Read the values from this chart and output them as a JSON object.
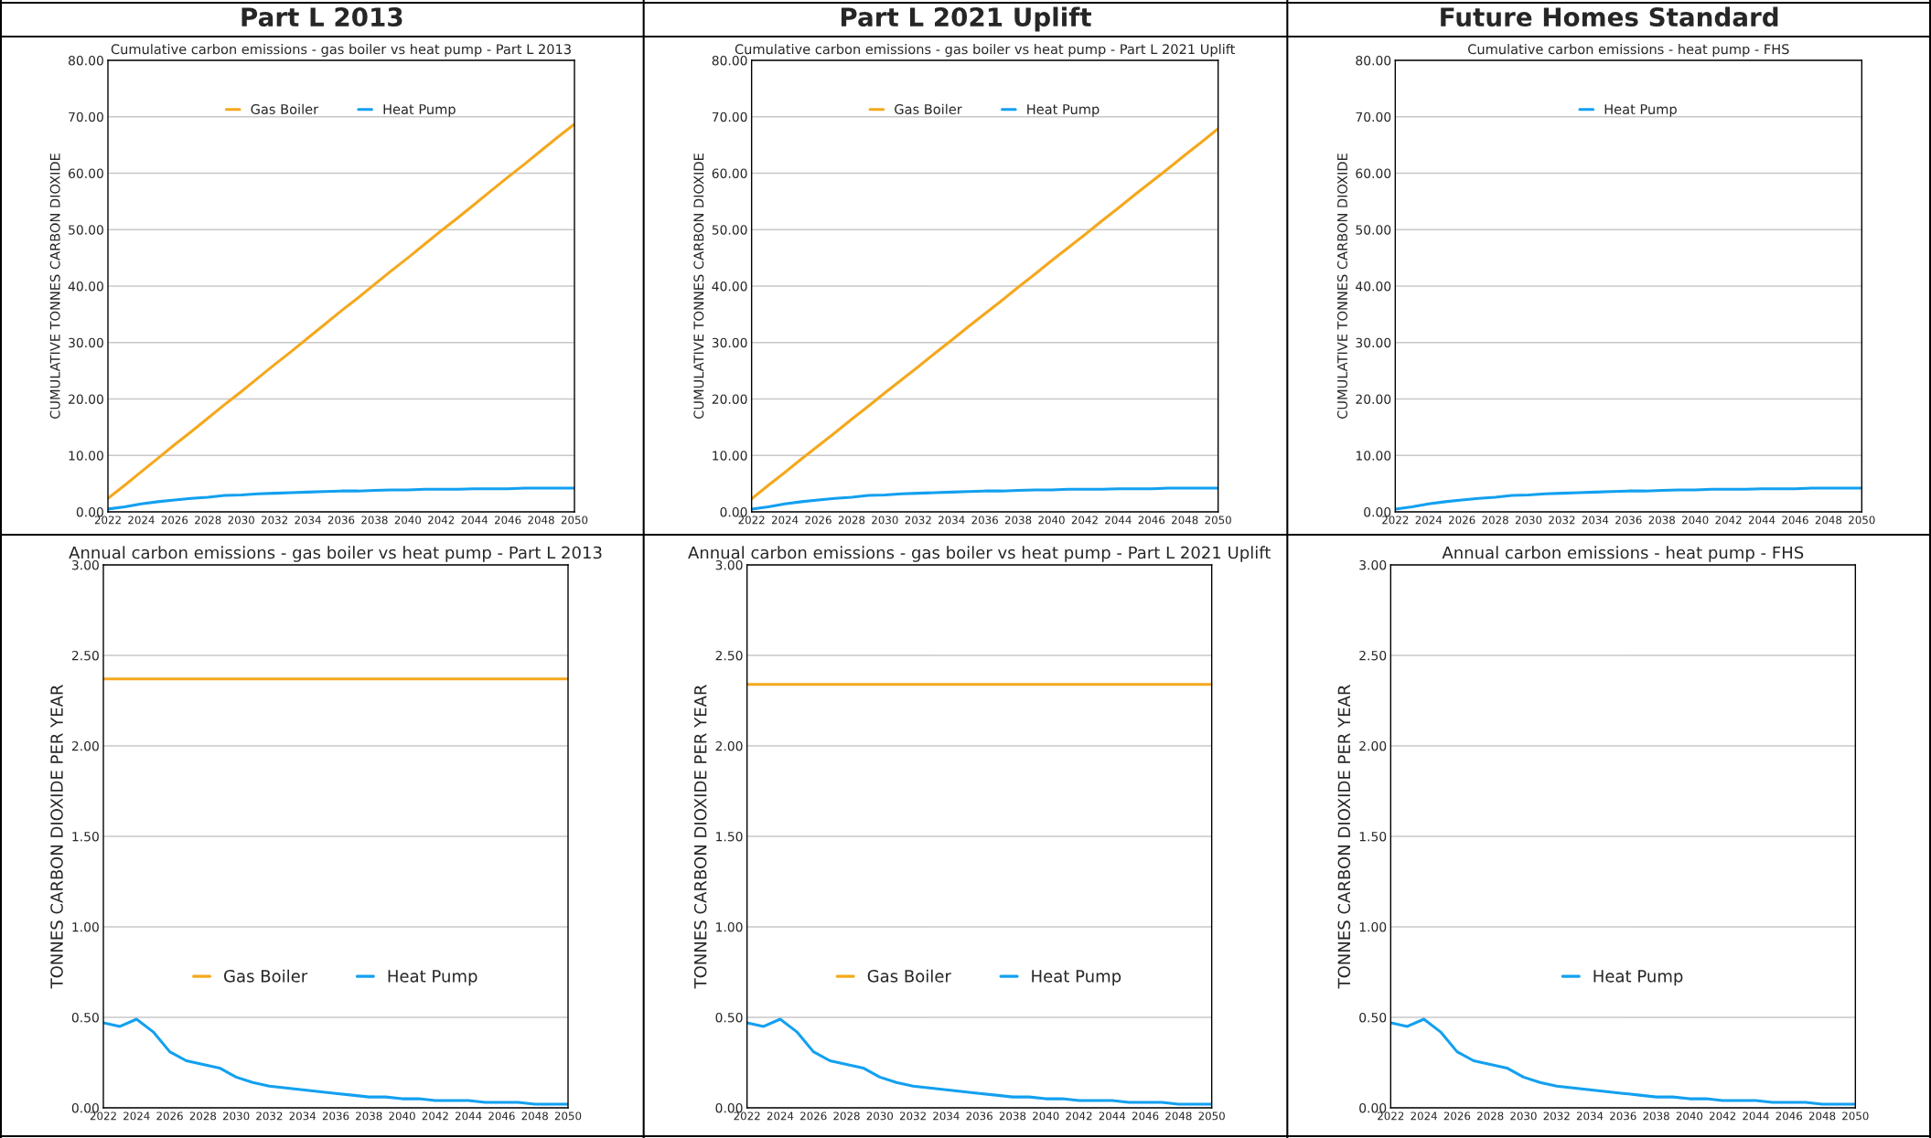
{
  "chart_data": [
    {
      "type": "line",
      "title": "Cumulative carbon emissions - gas boiler vs heat pump - Part L 2013",
      "ylabel": "CUMULATIVE TONNES CARBON DIOXIDE",
      "annotations": [
        "Part L 2013"
      ],
      "x": [
        2022,
        2023,
        2024,
        2025,
        2026,
        2027,
        2028,
        2029,
        2030,
        2031,
        2032,
        2033,
        2034,
        2035,
        2036,
        2037,
        2038,
        2039,
        2040,
        2041,
        2042,
        2043,
        2044,
        2045,
        2046,
        2047,
        2048,
        2049,
        2050
      ],
      "series": [
        {
          "name": "Gas Boiler",
          "color": "#f5a81c",
          "values": [
            2.4,
            4.7,
            7.1,
            9.5,
            11.9,
            14.2,
            16.6,
            19.0,
            21.3,
            23.7,
            26.1,
            28.4,
            30.8,
            33.2,
            35.6,
            37.9,
            40.3,
            42.7,
            45.0,
            47.4,
            49.8,
            52.1,
            54.5,
            56.9,
            59.3,
            61.6,
            64.0,
            66.4,
            68.7
          ]
        },
        {
          "name": "Heat Pump",
          "color": "#12a0f0",
          "values": [
            0.5,
            0.9,
            1.4,
            1.8,
            2.1,
            2.4,
            2.6,
            2.9,
            3.0,
            3.2,
            3.3,
            3.4,
            3.5,
            3.6,
            3.7,
            3.7,
            3.8,
            3.9,
            3.9,
            4.0,
            4.0,
            4.0,
            4.1,
            4.1,
            4.1,
            4.2,
            4.2,
            4.2,
            4.2
          ]
        }
      ],
      "xlim": [
        2022,
        2050
      ],
      "xticks": [
        2022,
        2024,
        2026,
        2028,
        2030,
        2032,
        2034,
        2036,
        2038,
        2040,
        2042,
        2044,
        2046,
        2048,
        2050
      ],
      "ylim": [
        0,
        80
      ],
      "yticks": [
        {
          "value": 0,
          "label": "0.00"
        },
        {
          "value": 10,
          "label": "10.00"
        },
        {
          "value": 20,
          "label": "20.00"
        },
        {
          "value": 30,
          "label": "30.00"
        },
        {
          "value": 40,
          "label": "40.00"
        },
        {
          "value": 50,
          "label": "50.00"
        },
        {
          "value": 60,
          "label": "60.00"
        },
        {
          "value": 70,
          "label": "70.00"
        },
        {
          "value": 80,
          "label": "80.00"
        }
      ],
      "grid": "y",
      "legend": "top",
      "marker": "none",
      "line_style": "solid"
    },
    {
      "type": "line",
      "title": "Cumulative carbon emissions - gas boiler vs heat pump - Part L 2021 Uplift",
      "ylabel": "CUMULATIVE TONNES CARBON DIOXIDE",
      "annotations": [
        "Part L 2021 Uplift"
      ],
      "x": [
        2022,
        2023,
        2024,
        2025,
        2026,
        2027,
        2028,
        2029,
        2030,
        2031,
        2032,
        2033,
        2034,
        2035,
        2036,
        2037,
        2038,
        2039,
        2040,
        2041,
        2042,
        2043,
        2044,
        2045,
        2046,
        2047,
        2048,
        2049,
        2050
      ],
      "series": [
        {
          "name": "Gas Boiler",
          "color": "#f5a81c",
          "values": [
            2.3,
            4.7,
            7.0,
            9.4,
            11.7,
            14.0,
            16.4,
            18.7,
            21.1,
            23.4,
            25.7,
            28.1,
            30.4,
            32.8,
            35.1,
            37.4,
            39.8,
            42.1,
            44.5,
            46.8,
            49.1,
            51.5,
            53.8,
            56.2,
            58.5,
            60.8,
            63.2,
            65.5,
            67.9
          ]
        },
        {
          "name": "Heat Pump",
          "color": "#12a0f0",
          "values": [
            0.5,
            0.9,
            1.4,
            1.8,
            2.1,
            2.4,
            2.6,
            2.9,
            3.0,
            3.2,
            3.3,
            3.4,
            3.5,
            3.6,
            3.7,
            3.7,
            3.8,
            3.9,
            3.9,
            4.0,
            4.0,
            4.0,
            4.1,
            4.1,
            4.1,
            4.2,
            4.2,
            4.2,
            4.2
          ]
        }
      ],
      "xlim": [
        2022,
        2050
      ],
      "xticks": [
        2022,
        2024,
        2026,
        2028,
        2030,
        2032,
        2034,
        2036,
        2038,
        2040,
        2042,
        2044,
        2046,
        2048,
        2050
      ],
      "ylim": [
        0,
        80
      ],
      "yticks": [
        {
          "value": 0,
          "label": "0.00"
        },
        {
          "value": 10,
          "label": "10.00"
        },
        {
          "value": 20,
          "label": "20.00"
        },
        {
          "value": 30,
          "label": "30.00"
        },
        {
          "value": 40,
          "label": "40.00"
        },
        {
          "value": 50,
          "label": "50.00"
        },
        {
          "value": 60,
          "label": "60.00"
        },
        {
          "value": 70,
          "label": "70.00"
        },
        {
          "value": 80,
          "label": "80.00"
        }
      ],
      "grid": "y",
      "legend": "top",
      "marker": "none",
      "line_style": "solid"
    },
    {
      "type": "line",
      "title": "Cumulative carbon emissions - heat pump - FHS",
      "ylabel": "CUMULATIVE TONNES CARBON DIOXIDE",
      "annotations": [
        "Future Homes Standard"
      ],
      "x": [
        2022,
        2023,
        2024,
        2025,
        2026,
        2027,
        2028,
        2029,
        2030,
        2031,
        2032,
        2033,
        2034,
        2035,
        2036,
        2037,
        2038,
        2039,
        2040,
        2041,
        2042,
        2043,
        2044,
        2045,
        2046,
        2047,
        2048,
        2049,
        2050
      ],
      "series": [
        {
          "name": "Heat Pump",
          "color": "#12a0f0",
          "values": [
            0.5,
            0.9,
            1.4,
            1.8,
            2.1,
            2.4,
            2.6,
            2.9,
            3.0,
            3.2,
            3.3,
            3.4,
            3.5,
            3.6,
            3.7,
            3.7,
            3.8,
            3.9,
            3.9,
            4.0,
            4.0,
            4.0,
            4.1,
            4.1,
            4.1,
            4.2,
            4.2,
            4.2,
            4.2
          ]
        }
      ],
      "xlim": [
        2022,
        2050
      ],
      "xticks": [
        2022,
        2024,
        2026,
        2028,
        2030,
        2032,
        2034,
        2036,
        2038,
        2040,
        2042,
        2044,
        2046,
        2048,
        2050
      ],
      "ylim": [
        0,
        80
      ],
      "yticks": [
        {
          "value": 0,
          "label": "0.00"
        },
        {
          "value": 10,
          "label": "10.00"
        },
        {
          "value": 20,
          "label": "20.00"
        },
        {
          "value": 30,
          "label": "30.00"
        },
        {
          "value": 40,
          "label": "40.00"
        },
        {
          "value": 50,
          "label": "50.00"
        },
        {
          "value": 60,
          "label": "60.00"
        },
        {
          "value": 70,
          "label": "70.00"
        },
        {
          "value": 80,
          "label": "80.00"
        }
      ],
      "grid": "y",
      "legend": "top",
      "marker": "none",
      "line_style": "solid"
    },
    {
      "type": "line",
      "title": "Annual carbon emissions - gas boiler vs heat pump - Part L 2013",
      "ylabel": "TONNES CARBON DIOXIDE PER YEAR",
      "x": [
        2022,
        2023,
        2024,
        2025,
        2026,
        2027,
        2028,
        2029,
        2030,
        2031,
        2032,
        2033,
        2034,
        2035,
        2036,
        2037,
        2038,
        2039,
        2040,
        2041,
        2042,
        2043,
        2044,
        2045,
        2046,
        2047,
        2048,
        2049,
        2050
      ],
      "series": [
        {
          "name": "Gas Boiler",
          "color": "#f5a81c",
          "values": [
            2.37,
            2.37,
            2.37,
            2.37,
            2.37,
            2.37,
            2.37,
            2.37,
            2.37,
            2.37,
            2.37,
            2.37,
            2.37,
            2.37,
            2.37,
            2.37,
            2.37,
            2.37,
            2.37,
            2.37,
            2.37,
            2.37,
            2.37,
            2.37,
            2.37,
            2.37,
            2.37,
            2.37,
            2.37
          ]
        },
        {
          "name": "Heat Pump",
          "color": "#12a0f0",
          "values": [
            0.47,
            0.45,
            0.49,
            0.42,
            0.31,
            0.26,
            0.24,
            0.22,
            0.17,
            0.14,
            0.12,
            0.11,
            0.1,
            0.09,
            0.08,
            0.07,
            0.06,
            0.06,
            0.05,
            0.05,
            0.04,
            0.04,
            0.04,
            0.03,
            0.03,
            0.03,
            0.02,
            0.02,
            0.02
          ]
        }
      ],
      "xlim": [
        2022,
        2050
      ],
      "xticks": [
        2022,
        2024,
        2026,
        2028,
        2030,
        2032,
        2034,
        2036,
        2038,
        2040,
        2042,
        2044,
        2046,
        2048,
        2050
      ],
      "ylim": [
        0,
        3
      ],
      "yticks": [
        {
          "value": 0,
          "label": "0.00"
        },
        {
          "value": 0.5,
          "label": "0.50"
        },
        {
          "value": 1,
          "label": "1.00"
        },
        {
          "value": 1.5,
          "label": "1.50"
        },
        {
          "value": 2,
          "label": "2.00"
        },
        {
          "value": 2.5,
          "label": "2.50"
        },
        {
          "value": 3,
          "label": "3.00"
        }
      ],
      "grid": "y",
      "legend": "bottom",
      "marker": "none",
      "line_style": "solid"
    },
    {
      "type": "line",
      "title": "Annual carbon emissions - gas boiler vs heat pump - Part L 2021 Uplift",
      "ylabel": "TONNES CARBON DIOXIDE PER YEAR",
      "x": [
        2022,
        2023,
        2024,
        2025,
        2026,
        2027,
        2028,
        2029,
        2030,
        2031,
        2032,
        2033,
        2034,
        2035,
        2036,
        2037,
        2038,
        2039,
        2040,
        2041,
        2042,
        2043,
        2044,
        2045,
        2046,
        2047,
        2048,
        2049,
        2050
      ],
      "series": [
        {
          "name": "Gas Boiler",
          "color": "#f5a81c",
          "values": [
            2.34,
            2.34,
            2.34,
            2.34,
            2.34,
            2.34,
            2.34,
            2.34,
            2.34,
            2.34,
            2.34,
            2.34,
            2.34,
            2.34,
            2.34,
            2.34,
            2.34,
            2.34,
            2.34,
            2.34,
            2.34,
            2.34,
            2.34,
            2.34,
            2.34,
            2.34,
            2.34,
            2.34,
            2.34
          ]
        },
        {
          "name": "Heat Pump",
          "color": "#12a0f0",
          "values": [
            0.47,
            0.45,
            0.49,
            0.42,
            0.31,
            0.26,
            0.24,
            0.22,
            0.17,
            0.14,
            0.12,
            0.11,
            0.1,
            0.09,
            0.08,
            0.07,
            0.06,
            0.06,
            0.05,
            0.05,
            0.04,
            0.04,
            0.04,
            0.03,
            0.03,
            0.03,
            0.02,
            0.02,
            0.02
          ]
        }
      ],
      "xlim": [
        2022,
        2050
      ],
      "xticks": [
        2022,
        2024,
        2026,
        2028,
        2030,
        2032,
        2034,
        2036,
        2038,
        2040,
        2042,
        2044,
        2046,
        2048,
        2050
      ],
      "ylim": [
        0,
        3
      ],
      "yticks": [
        {
          "value": 0,
          "label": "0.00"
        },
        {
          "value": 0.5,
          "label": "0.50"
        },
        {
          "value": 1,
          "label": "1.00"
        },
        {
          "value": 1.5,
          "label": "1.50"
        },
        {
          "value": 2,
          "label": "2.00"
        },
        {
          "value": 2.5,
          "label": "2.50"
        },
        {
          "value": 3,
          "label": "3.00"
        }
      ],
      "grid": "y",
      "legend": "bottom",
      "marker": "none",
      "line_style": "solid"
    },
    {
      "type": "line",
      "title": "Annual carbon emissions - heat pump - FHS",
      "ylabel": "TONNES CARBON DIOXIDE PER YEAR",
      "x": [
        2022,
        2023,
        2024,
        2025,
        2026,
        2027,
        2028,
        2029,
        2030,
        2031,
        2032,
        2033,
        2034,
        2035,
        2036,
        2037,
        2038,
        2039,
        2040,
        2041,
        2042,
        2043,
        2044,
        2045,
        2046,
        2047,
        2048,
        2049,
        2050
      ],
      "series": [
        {
          "name": "Heat Pump",
          "color": "#12a0f0",
          "values": [
            0.47,
            0.45,
            0.49,
            0.42,
            0.31,
            0.26,
            0.24,
            0.22,
            0.17,
            0.14,
            0.12,
            0.11,
            0.1,
            0.09,
            0.08,
            0.07,
            0.06,
            0.06,
            0.05,
            0.05,
            0.04,
            0.04,
            0.04,
            0.03,
            0.03,
            0.03,
            0.02,
            0.02,
            0.02
          ]
        }
      ],
      "xlim": [
        2022,
        2050
      ],
      "xticks": [
        2022,
        2024,
        2026,
        2028,
        2030,
        2032,
        2034,
        2036,
        2038,
        2040,
        2042,
        2044,
        2046,
        2048,
        2050
      ],
      "ylim": [
        0,
        3
      ],
      "yticks": [
        {
          "value": 0,
          "label": "0.00"
        },
        {
          "value": 0.5,
          "label": "0.50"
        },
        {
          "value": 1,
          "label": "1.00"
        },
        {
          "value": 1.5,
          "label": "1.50"
        },
        {
          "value": 2,
          "label": "2.00"
        },
        {
          "value": 2.5,
          "label": "2.50"
        },
        {
          "value": 3,
          "label": "3.00"
        }
      ],
      "grid": "y",
      "legend": "bottom",
      "marker": "none",
      "line_style": "solid"
    }
  ]
}
